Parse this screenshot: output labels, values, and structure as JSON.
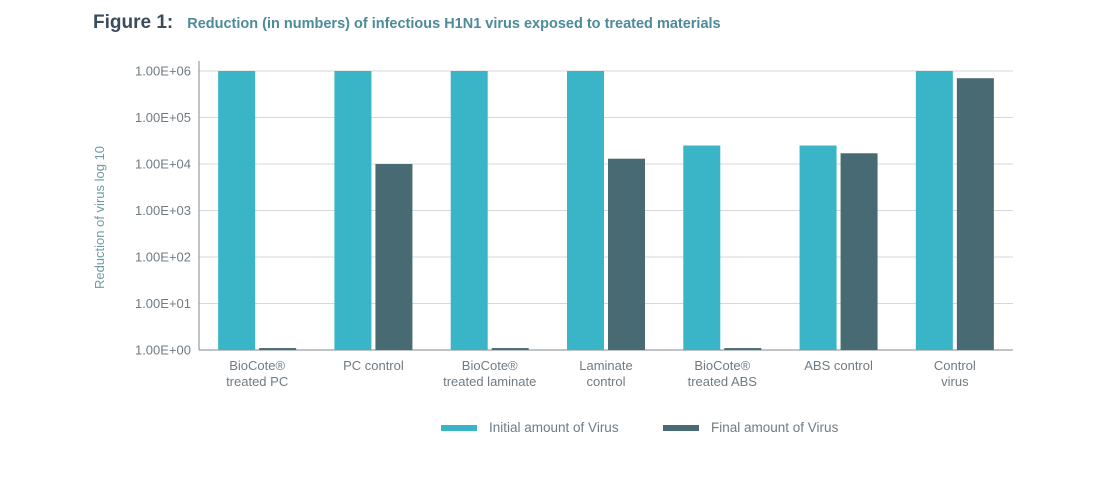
{
  "figure": {
    "label": "Figure 1:",
    "title": "Reduction (in numbers) of infectious H1N1 virus exposed to treated materials"
  },
  "colors": {
    "initial": "#3ab5c8",
    "final": "#486a72",
    "grid": "#d4d8da",
    "axis": "#7d8a92"
  },
  "chart_data": {
    "type": "bar",
    "title": "Reduction (in numbers) of infectious H1N1 virus exposed to treated materials",
    "ylabel": "Reduction of virus log 10",
    "xlabel": "",
    "yscale": "log",
    "ylim": [
      1,
      1000000
    ],
    "yticks": [
      "1.00E+00",
      "1.00E+01",
      "1.00E+02",
      "1.00E+03",
      "1.00E+04",
      "1.00E+05",
      "1.00E+06"
    ],
    "categories": [
      [
        "BioCote®",
        "treated PC"
      ],
      [
        "PC control"
      ],
      [
        "BioCote®",
        "treated laminate"
      ],
      [
        "Laminate",
        "control"
      ],
      [
        "BioCote®",
        "treated ABS"
      ],
      [
        "ABS control"
      ],
      [
        "Control",
        "virus"
      ]
    ],
    "series": [
      {
        "name": "Initial amount of Virus",
        "values": [
          1000000,
          1000000,
          1000000,
          1000000,
          25000,
          25000,
          1000000
        ]
      },
      {
        "name": "Final amount of Virus",
        "values": [
          1.1,
          10000,
          1.1,
          13000,
          1.1,
          17000,
          700000
        ]
      }
    ],
    "grid": true,
    "legend": "bottom"
  }
}
